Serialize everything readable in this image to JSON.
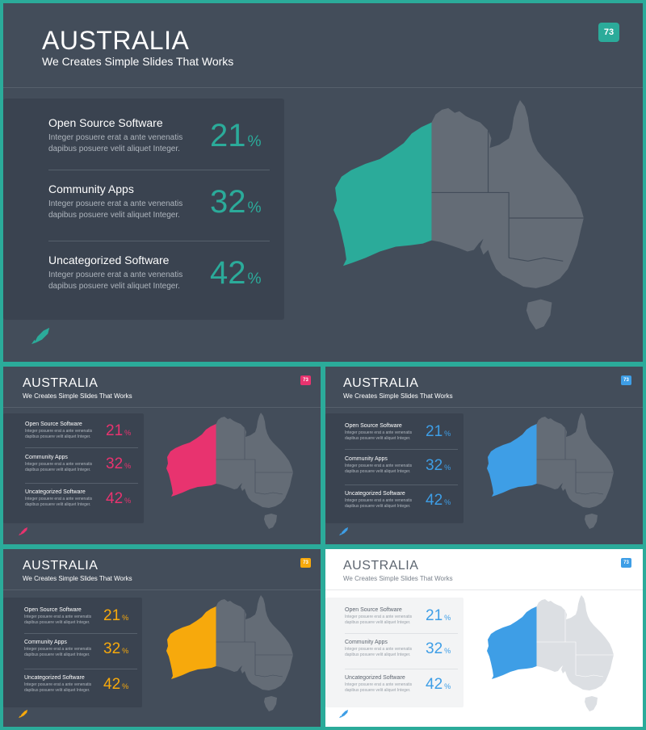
{
  "slides": {
    "big": {
      "title": "AUSTRALIA",
      "subtitle": "We Creates Simple Slides That Works",
      "page": "73",
      "accent": "#2bab9a",
      "theme": "dark"
    },
    "tl": {
      "title": "AUSTRALIA",
      "subtitle": "We Creates Simple Slides That Works",
      "page": "73",
      "accent": "#e8336f",
      "theme": "dark"
    },
    "tr": {
      "title": "AUSTRALIA",
      "subtitle": "We Creates Simple Slides That Works",
      "page": "73",
      "accent": "#3e9ee6",
      "theme": "dark"
    },
    "bl": {
      "title": "AUSTRALIA",
      "subtitle": "We Creates Simple Slides That Works",
      "page": "73",
      "accent": "#f7a90c",
      "theme": "dark"
    },
    "br": {
      "title": "AUSTRALIA",
      "subtitle": "We Creates Simple Slides That Works",
      "page": "73",
      "accent": "#3e9ee6",
      "theme": "light"
    }
  },
  "items": [
    {
      "title": "Open Source Software",
      "desc1": "Integer posuere erat a ante venenatis",
      "desc2": "dapibus posuere velit aliquet Integer.",
      "value": "21",
      "unit": "%"
    },
    {
      "title": "Community Apps",
      "desc1": "Integer posuere erat a ante venenatis",
      "desc2": "dapibus posuere velit aliquet Integer.",
      "value": "32",
      "unit": "%"
    },
    {
      "title": "Uncategorized Software",
      "desc1": "Integer posuere erat a ante venenatis",
      "desc2": "dapibus posuere velit aliquet Integer.",
      "value": "42",
      "unit": "%"
    }
  ],
  "icons": {
    "logo": "rocket-icon",
    "map": "australia-map"
  }
}
